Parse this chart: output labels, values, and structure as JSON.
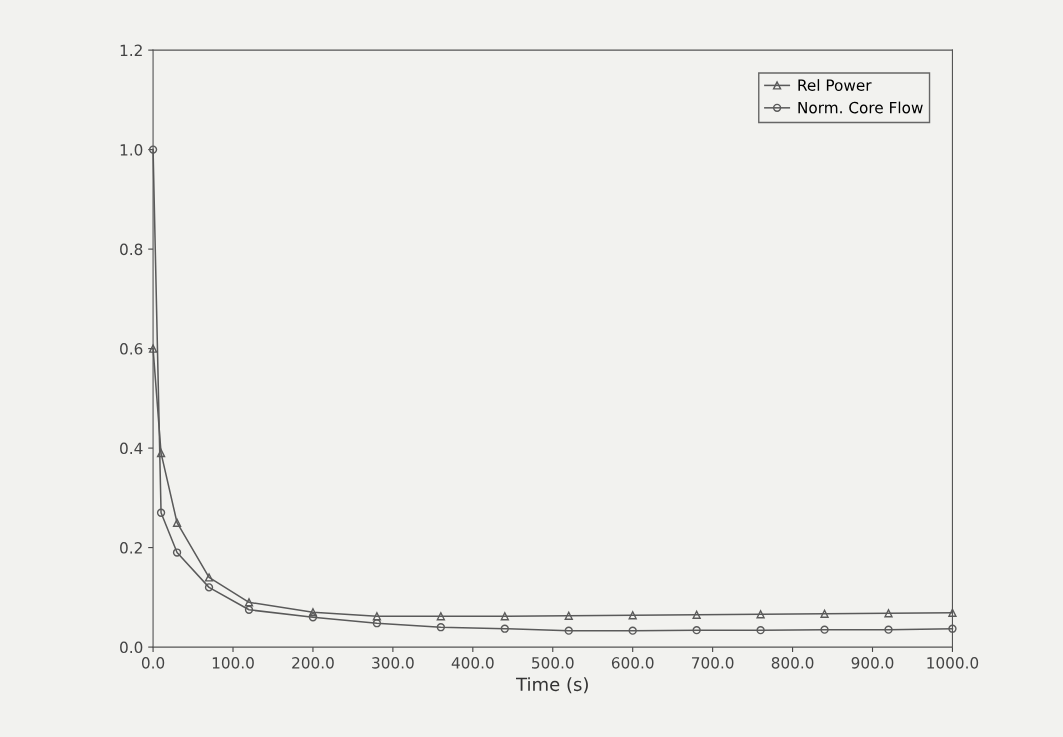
{
  "chart_data": {
    "type": "line",
    "xlabel": "Time (s)",
    "legend": "top right",
    "grid": false,
    "line_style": "solid",
    "xlim": [
      0,
      1000
    ],
    "ylim": [
      0,
      1.2
    ],
    "xticks": [
      {
        "value": 0,
        "label": "0.0"
      },
      {
        "value": 100,
        "label": "100.0"
      },
      {
        "value": 200,
        "label": "200.0"
      },
      {
        "value": 300,
        "label": "300.0"
      },
      {
        "value": 400,
        "label": "400.0"
      },
      {
        "value": 500,
        "label": "500.0"
      },
      {
        "value": 600,
        "label": "600.0"
      },
      {
        "value": 700,
        "label": "700.0"
      },
      {
        "value": 800,
        "label": "800.0"
      },
      {
        "value": 900,
        "label": "900.0"
      },
      {
        "value": 1000,
        "label": "1000.0"
      }
    ],
    "yticks": [
      {
        "value": 0,
        "label": "0.0"
      },
      {
        "value": 0.2,
        "label": "0.2"
      },
      {
        "value": 0.4,
        "label": "0.4"
      },
      {
        "value": 0.6,
        "label": "0.6"
      },
      {
        "value": 0.8,
        "label": "0.8"
      },
      {
        "value": 1.0,
        "label": "1.0"
      },
      {
        "value": 1.2,
        "label": "1.2"
      }
    ],
    "series": [
      {
        "name": "Rel Power",
        "color": "#5a5a5a",
        "marker": "triangle",
        "x": [
          0,
          10,
          30,
          70,
          120,
          200,
          280,
          360,
          440,
          520,
          600,
          680,
          760,
          840,
          920,
          1000
        ],
        "values": [
          0.6,
          0.39,
          0.25,
          0.14,
          0.09,
          0.07,
          0.062,
          0.062,
          0.062,
          0.063,
          0.064,
          0.065,
          0.066,
          0.067,
          0.068,
          0.069
        ]
      },
      {
        "name": "Norm. Core Flow",
        "color": "#5a5a5a",
        "marker": "circle",
        "x": [
          0,
          10,
          30,
          70,
          120,
          200,
          280,
          360,
          440,
          520,
          600,
          680,
          760,
          840,
          920,
          1000
        ],
        "values": [
          1.0,
          0.27,
          0.19,
          0.12,
          0.075,
          0.06,
          0.048,
          0.04,
          0.037,
          0.033,
          0.033,
          0.034,
          0.034,
          0.035,
          0.035,
          0.037
        ]
      }
    ]
  }
}
